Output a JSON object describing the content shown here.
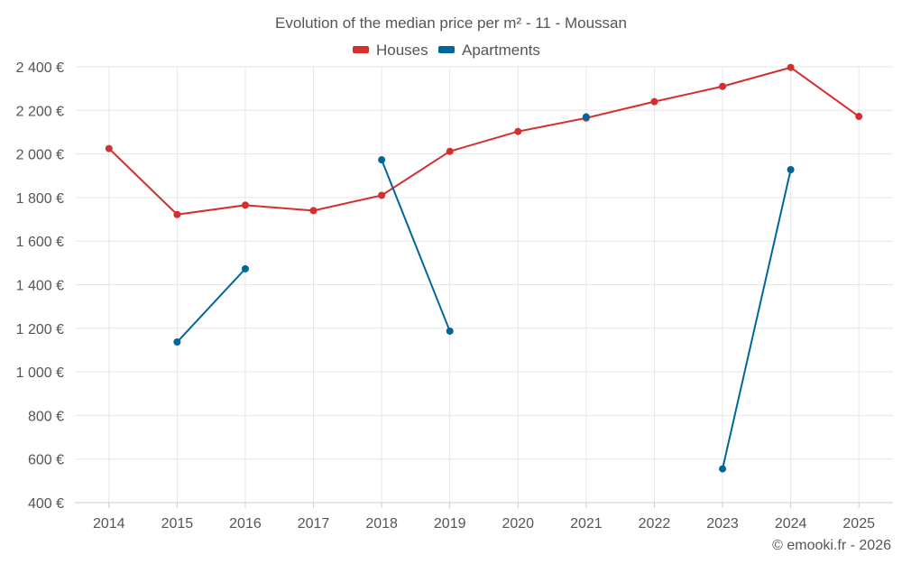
{
  "chart_data": {
    "type": "line",
    "title": "Evolution of the median price per m² - 11 - Moussan",
    "categories": [
      "2014",
      "2015",
      "2016",
      "2017",
      "2018",
      "2019",
      "2020",
      "2021",
      "2022",
      "2023",
      "2024",
      "2025"
    ],
    "ylim": [
      400,
      2400
    ],
    "yticks": [
      400,
      600,
      800,
      1000,
      1200,
      1400,
      1600,
      1800,
      2000,
      2200,
      2400
    ],
    "ytick_labels": [
      "400 €",
      "600 €",
      "800 €",
      "1 000 €",
      "1 200 €",
      "1 400 €",
      "1 600 €",
      "1 800 €",
      "2 000 €",
      "2 200 €",
      "2 400 €"
    ],
    "grid": true,
    "legend": "top-center",
    "series": [
      {
        "name": "Houses",
        "color": "#d32f2f",
        "values": [
          2025,
          1722,
          1765,
          1740,
          1810,
          2012,
          2103,
          2165,
          2240,
          2310,
          2397,
          2172
        ]
      },
      {
        "name": "Apartments",
        "color": "#006699",
        "values": [
          null,
          1137,
          1473,
          null,
          1973,
          1187,
          null,
          2170,
          null,
          555,
          1928,
          null
        ]
      }
    ]
  },
  "credit": "© emooki.fr - 2026"
}
